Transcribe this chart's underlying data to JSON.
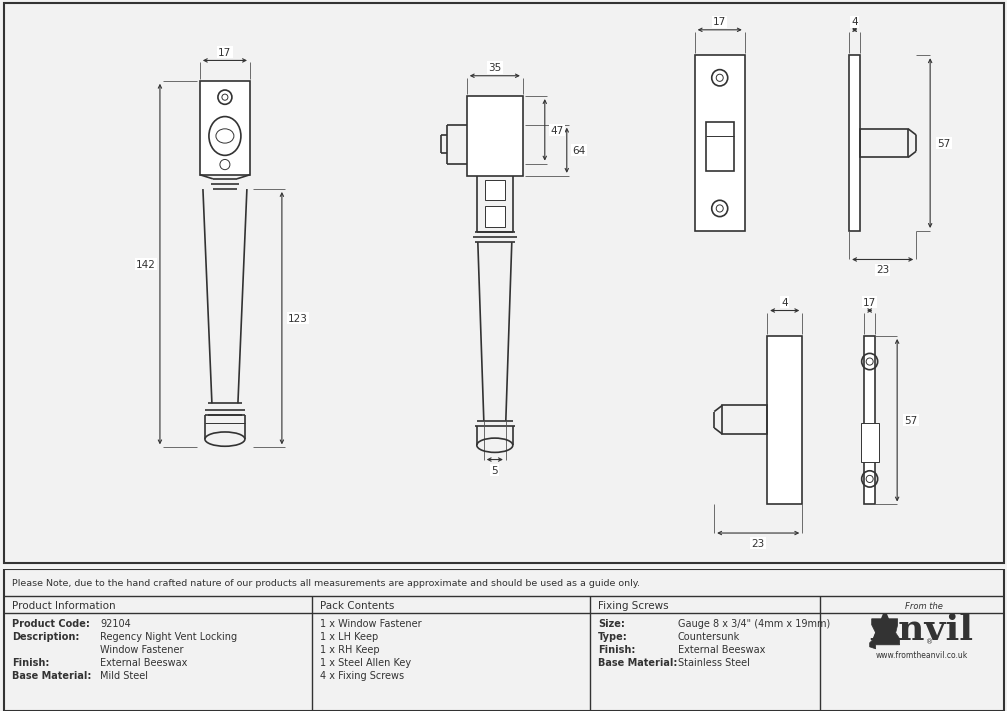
{
  "bg_color": "#f2f2f2",
  "drawing_bg": "#ffffff",
  "line_color": "#333333",
  "dim_color": "#333333",
  "note_text": "Please Note, due to the hand crafted nature of our products all measurements are approximate and should be used as a guide only.",
  "product_info": {
    "label": "Product Information",
    "items": [
      [
        "Product Code:",
        "92104"
      ],
      [
        "Description:",
        "Regency Night Vent Locking"
      ],
      [
        "",
        "Window Fastener"
      ],
      [
        "Finish:",
        "External Beeswax"
      ],
      [
        "Base Material:",
        "Mild Steel"
      ]
    ]
  },
  "pack_contents": {
    "label": "Pack Contents",
    "items": [
      "1 x Window Fastener",
      "1 x LH Keep",
      "1 x RH Keep",
      "1 x Steel Allen Key",
      "4 x Fixing Screws"
    ]
  },
  "fixing_screws": {
    "label": "Fixing Screws",
    "items": [
      [
        "Size:",
        "Gauge 8 x 3/4\" (4mm x 19mm)"
      ],
      [
        "Type:",
        "Countersunk"
      ],
      [
        "Finish:",
        "External Beeswax"
      ],
      [
        "Base Material:",
        "Stainless Steel"
      ]
    ]
  }
}
